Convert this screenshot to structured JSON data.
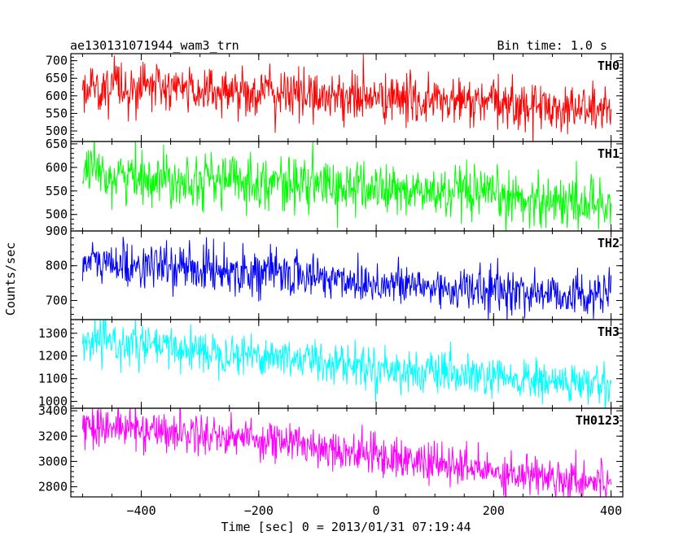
{
  "header": {
    "left_title": "ae130131071944_wam3_trn",
    "right_title": "Bin time: 1.0 s"
  },
  "axes": {
    "xlabel": "Time [sec] 0 = 2013/01/31 07:19:44",
    "ylabel": "Counts/sec"
  },
  "chart_data": {
    "type": "line",
    "title": "ae130131071944_wam3_trn",
    "subtitle": "Bin time: 1.0 s",
    "xlabel": "Time [sec] 0 = 2013/01/31 07:19:44",
    "ylabel": "Counts/sec",
    "xlim": [
      -520,
      420
    ],
    "x_ticks": [
      -400,
      -200,
      0,
      200,
      400
    ],
    "x_tick_labels": [
      "−400",
      "−200",
      "0",
      "200",
      "400"
    ],
    "x_range_data": [
      -500,
      400
    ],
    "bin_time_s": 1.0,
    "grid": false,
    "legend": "none",
    "panels": [
      {
        "name": "TH0",
        "color": "#ff0000",
        "ylim": [
          470,
          720
        ],
        "y_ticks": [
          500,
          550,
          600,
          650,
          700
        ],
        "x": [
          -500,
          -400,
          -300,
          -200,
          -100,
          0,
          100,
          200,
          300,
          400
        ],
        "trend": [
          630,
          625,
          617,
          610,
          602,
          593,
          585,
          577,
          568,
          560
        ],
        "noise_sd": 35
      },
      {
        "name": "TH1",
        "color": "#00ff00",
        "ylim": [
          465,
          655
        ],
        "y_ticks": [
          500,
          550,
          600,
          650
        ],
        "x": [
          -500,
          -400,
          -300,
          -200,
          -100,
          0,
          100,
          200,
          300,
          400
        ],
        "trend": [
          585,
          580,
          576,
          571,
          562,
          554,
          545,
          537,
          529,
          522
        ],
        "noise_sd": 28
      },
      {
        "name": "TH2",
        "color": "#0000ff",
        "ylim": [
          645,
          900
        ],
        "y_ticks": [
          700,
          800,
          900
        ],
        "x": [
          -500,
          -400,
          -300,
          -200,
          -100,
          0,
          100,
          200,
          300,
          400
        ],
        "trend": [
          810,
          800,
          792,
          782,
          768,
          750,
          737,
          728,
          720,
          712
        ],
        "noise_sd": 32
      },
      {
        "name": "TH3",
        "color": "#00ffff",
        "ylim": [
          970,
          1360
        ],
        "y_ticks": [
          1000,
          1100,
          1200,
          1300
        ],
        "x": [
          -500,
          -400,
          -300,
          -200,
          -100,
          0,
          100,
          200,
          300,
          400
        ],
        "trend": [
          1265,
          1245,
          1225,
          1205,
          1180,
          1150,
          1120,
          1100,
          1085,
          1070
        ],
        "noise_sd": 45
      },
      {
        "name": "TH0123",
        "color": "#ff00ff",
        "ylim": [
          2720,
          3420
        ],
        "y_ticks": [
          2800,
          3000,
          3200,
          3400
        ],
        "x": [
          -500,
          -400,
          -300,
          -200,
          -100,
          0,
          100,
          200,
          300,
          400
        ],
        "trend": [
          3290,
          3255,
          3220,
          3180,
          3120,
          3050,
          2980,
          2920,
          2880,
          2840
        ],
        "noise_sd": 80
      }
    ]
  }
}
